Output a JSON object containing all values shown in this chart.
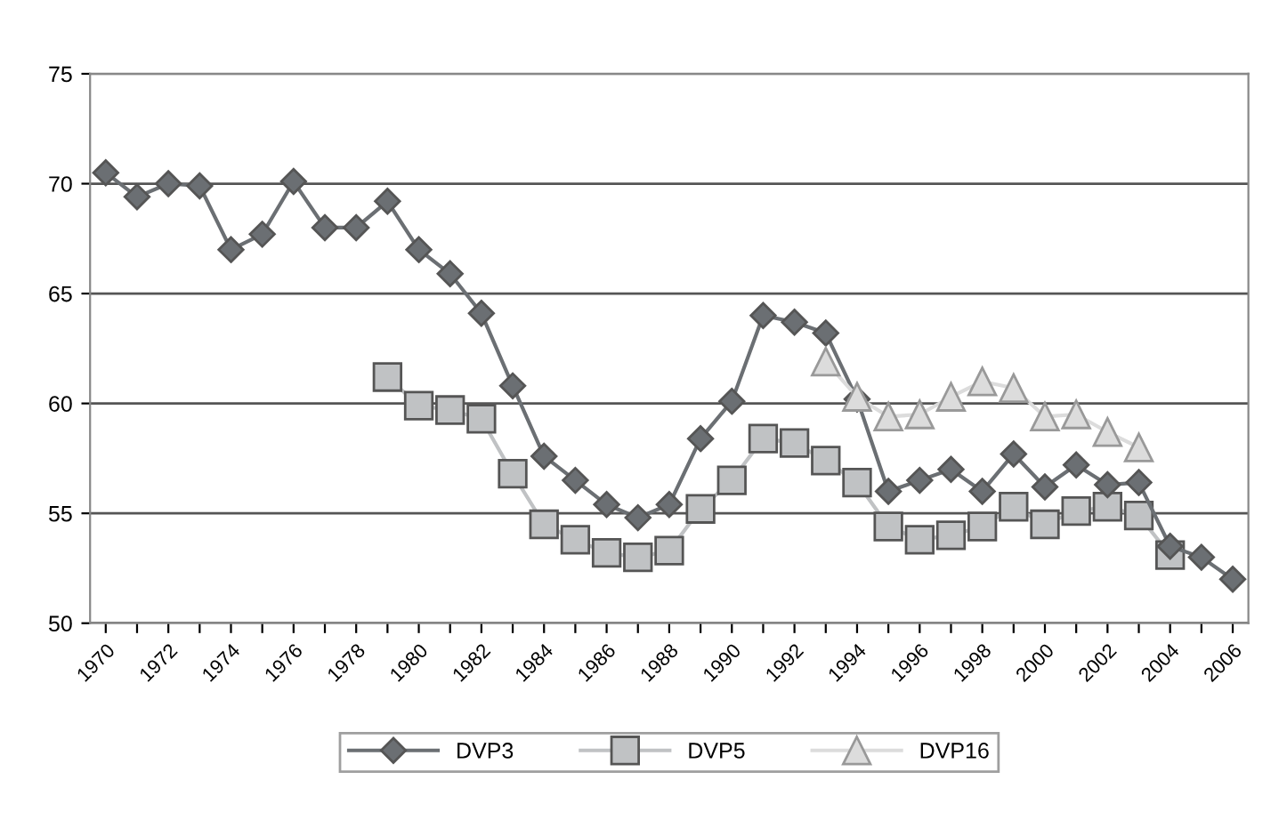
{
  "chart_data": {
    "type": "line",
    "categories": [
      "1970",
      null,
      "1972",
      null,
      "1974",
      null,
      "1976",
      null,
      "1978",
      null,
      "1980",
      null,
      "1982",
      null,
      "1984",
      null,
      "1986",
      null,
      "1988",
      null,
      "1990",
      null,
      "1992",
      null,
      "1994",
      null,
      "1996",
      null,
      "1998",
      null,
      "2000",
      null,
      "2002",
      null,
      "2004",
      null,
      "2006"
    ],
    "series": [
      {
        "name": "DVP3",
        "color": "#6b6f73",
        "marker": "diamond",
        "values": [
          70.5,
          69.4,
          70,
          69.9,
          67,
          67.7,
          70.1,
          68,
          68,
          69.2,
          67,
          65.9,
          64.1,
          60.8,
          57.6,
          56.5,
          55.4,
          54.8,
          55.4,
          58.4,
          60.1,
          64,
          63.7,
          63.2,
          60.2,
          56,
          56.5,
          57,
          56,
          57.7,
          56.2,
          57.2,
          56.3,
          56.4,
          53.5,
          53,
          52
        ]
      },
      {
        "name": "DVP5",
        "color": "#c0c2c4",
        "marker": "square",
        "values": [
          null,
          null,
          null,
          null,
          null,
          null,
          null,
          null,
          null,
          61.2,
          59.9,
          59.7,
          59.3,
          56.8,
          54.5,
          53.8,
          53.2,
          53,
          53.3,
          55.2,
          56.5,
          58.4,
          58.2,
          57.4,
          56.4,
          54.4,
          53.8,
          54,
          54.4,
          55.3,
          54.5,
          55.1,
          55.3,
          54.9,
          53.1,
          null,
          null
        ]
      },
      {
        "name": "DVP16",
        "color": "#dcdcdc",
        "marker": "triangle",
        "values": [
          null,
          null,
          null,
          null,
          null,
          null,
          null,
          null,
          null,
          null,
          null,
          null,
          null,
          null,
          null,
          null,
          null,
          null,
          null,
          null,
          null,
          null,
          null,
          61.9,
          60.3,
          59.4,
          59.5,
          60.3,
          61,
          60.7,
          59.4,
          59.5,
          58.7,
          58,
          null,
          null,
          null
        ]
      }
    ],
    "ylim": [
      50,
      75
    ],
    "yticks": [
      50,
      55,
      60,
      65,
      70,
      75
    ],
    "grid": "y",
    "legend": "bottom"
  }
}
